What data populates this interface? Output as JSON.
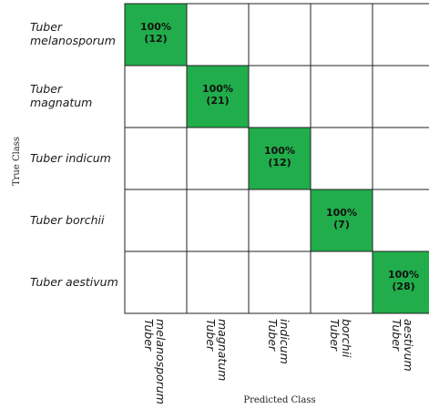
{
  "chart_data": {
    "type": "heatmap",
    "xlabel": "Predicted Class",
    "ylabel": "True Class",
    "row_labels": [
      [
        "Tuber",
        "melanosporum"
      ],
      [
        "Tuber",
        "magnatum"
      ],
      [
        "Tuber indicum"
      ],
      [
        "Tuber borchii"
      ],
      [
        "Tuber aestivum"
      ]
    ],
    "col_labels": [
      [
        "Tuber",
        "melanosporum"
      ],
      [
        "Tuber",
        "magnatum"
      ],
      [
        "Tuber",
        "indicum"
      ],
      [
        "Tuber",
        "borchii"
      ],
      [
        "Tuber",
        "aestivum"
      ]
    ],
    "cells": [
      {
        "row": 0,
        "col": 0,
        "percent": "100%",
        "count": "(12)"
      },
      {
        "row": 1,
        "col": 1,
        "percent": "100%",
        "count": "(21)"
      },
      {
        "row": 2,
        "col": 2,
        "percent": "100%",
        "count": "(12)"
      },
      {
        "row": 3,
        "col": 3,
        "percent": "100%",
        "count": "(7)"
      },
      {
        "row": 4,
        "col": 4,
        "percent": "100%",
        "count": "(28)"
      }
    ],
    "highlight_color": "#21ad4b",
    "grid_color": "#222222"
  }
}
